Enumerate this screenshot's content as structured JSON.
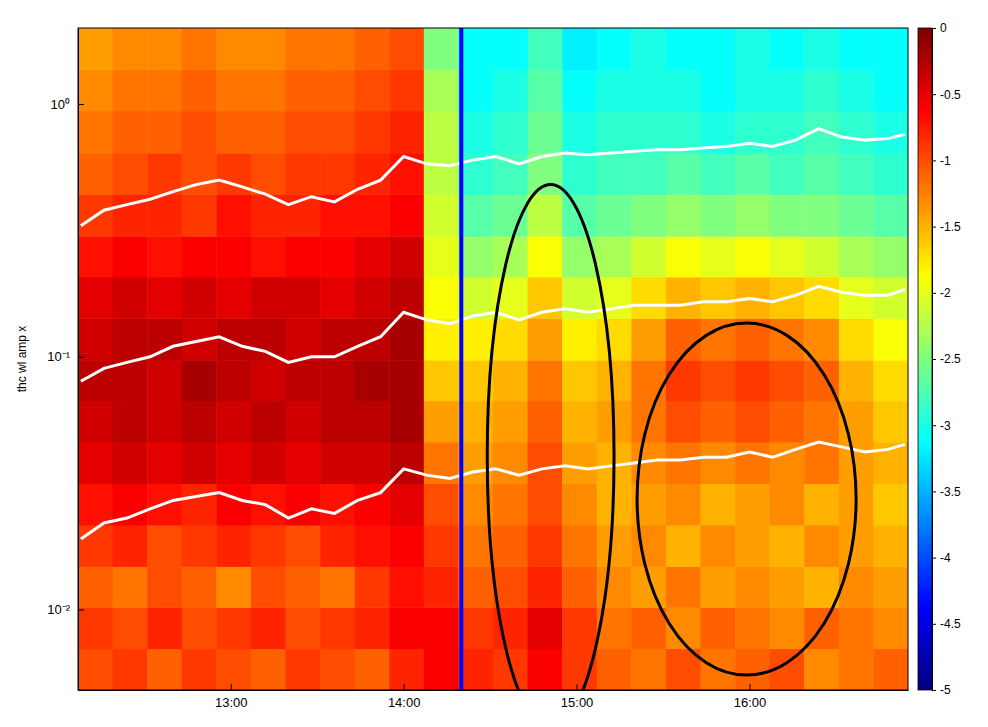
{
  "chart_data": {
    "type": "heatmap",
    "y_label": "thc wl amp x",
    "log": "y",
    "grid": false,
    "xlim": [
      727,
      1015
    ],
    "xticks": [
      {
        "value": 780,
        "label": "13:00"
      },
      {
        "value": 840,
        "label": "14:00"
      },
      {
        "value": 900,
        "label": "15:00"
      },
      {
        "value": 960,
        "label": "16:00"
      }
    ],
    "ylim": [
      0.0048,
      2.0
    ],
    "yticks": [
      {
        "value": 0.01,
        "label": "10⁻²"
      },
      {
        "value": 0.1,
        "label": "10⁻¹"
      },
      {
        "value": 1,
        "label": "10⁰"
      }
    ],
    "x_edges": [
      727,
      739,
      751,
      763,
      775,
      787,
      799,
      811,
      823,
      835,
      847,
      859,
      871,
      883,
      895,
      907,
      919,
      931,
      943,
      955,
      967,
      979,
      991,
      1003,
      1015
    ],
    "y_edges": [
      0.0048,
      0.007,
      0.0102,
      0.0148,
      0.0216,
      0.0315,
      0.046,
      0.067,
      0.097,
      0.142,
      0.207,
      0.3,
      0.44,
      0.64,
      0.94,
      1.37,
      2.0
    ],
    "z": [
      [
        -1.0,
        -0.9,
        -1.1,
        -0.9,
        -1.0,
        -1.1,
        -0.9,
        -1.0,
        -1.1,
        -0.8,
        -0.6,
        -0.8,
        -0.9,
        -0.6,
        -0.9,
        -1.1,
        -1.2,
        -1.0,
        -1.2,
        -1.1,
        -1.0,
        -1.3,
        -1.2,
        -1.1
      ],
      [
        -0.9,
        -1.0,
        -0.8,
        -1.0,
        -0.9,
        -0.8,
        -1.0,
        -0.9,
        -0.8,
        -0.6,
        -0.6,
        -0.9,
        -0.8,
        -0.5,
        -0.9,
        -1.2,
        -1.1,
        -1.3,
        -1.1,
        -1.2,
        -1.3,
        -1.1,
        -1.2,
        -1.3
      ],
      [
        -1.1,
        -1.2,
        -1.0,
        -1.1,
        -1.3,
        -1.0,
        -1.1,
        -1.2,
        -0.9,
        -0.7,
        -0.8,
        -1.1,
        -1.0,
        -0.8,
        -1.1,
        -1.3,
        -1.4,
        -1.2,
        -1.4,
        -1.3,
        -1.4,
        -1.5,
        -1.3,
        -1.4
      ],
      [
        -0.9,
        -0.8,
        -1.0,
        -0.9,
        -0.8,
        -0.9,
        -1.0,
        -0.8,
        -0.7,
        -0.6,
        -0.9,
        -1.2,
        -1.1,
        -0.9,
        -1.2,
        -1.4,
        -1.3,
        -1.5,
        -1.3,
        -1.4,
        -1.5,
        -1.3,
        -1.4,
        -1.5
      ],
      [
        -0.7,
        -0.6,
        -0.7,
        -0.8,
        -0.6,
        -0.7,
        -0.6,
        -0.7,
        -0.6,
        -0.5,
        -1.0,
        -1.3,
        -1.2,
        -1.0,
        -1.3,
        -1.5,
        -1.4,
        -1.3,
        -1.5,
        -1.4,
        -1.3,
        -1.5,
        -1.4,
        -1.6
      ],
      [
        -0.5,
        -0.4,
        -0.5,
        -0.4,
        -0.5,
        -0.4,
        -0.5,
        -0.4,
        -0.4,
        -0.3,
        -1.2,
        -1.4,
        -1.3,
        -1.0,
        -1.4,
        -1.5,
        -1.3,
        -1.2,
        -1.3,
        -1.2,
        -1.3,
        -1.2,
        -1.4,
        -1.5
      ],
      [
        -0.4,
        -0.3,
        -0.4,
        -0.3,
        -0.4,
        -0.3,
        -0.4,
        -0.3,
        -0.3,
        -0.2,
        -1.4,
        -1.5,
        -1.4,
        -1.1,
        -1.5,
        -1.4,
        -1.2,
        -1.0,
        -1.1,
        -1.0,
        -1.1,
        -1.2,
        -1.4,
        -1.6
      ],
      [
        -0.3,
        -0.3,
        -0.4,
        -0.2,
        -0.3,
        -0.4,
        -0.3,
        -0.3,
        -0.2,
        -0.2,
        -1.6,
        -1.6,
        -1.5,
        -1.2,
        -1.6,
        -1.5,
        -1.2,
        -0.9,
        -1.0,
        -0.9,
        -1.0,
        -1.1,
        -1.5,
        -1.7
      ],
      [
        -0.4,
        -0.3,
        -0.3,
        -0.4,
        -0.3,
        -0.3,
        -0.4,
        -0.3,
        -0.3,
        -0.2,
        -1.8,
        -1.8,
        -1.7,
        -1.4,
        -1.8,
        -1.7,
        -1.4,
        -1.1,
        -1.2,
        -1.1,
        -1.2,
        -1.3,
        -1.7,
        -1.9
      ],
      [
        -0.5,
        -0.4,
        -0.5,
        -0.4,
        -0.5,
        -0.4,
        -0.4,
        -0.5,
        -0.4,
        -0.3,
        -1.9,
        -2.1,
        -2.0,
        -1.6,
        -2.1,
        -2.0,
        -1.7,
        -1.5,
        -1.6,
        -1.5,
        -1.6,
        -1.7,
        -2.0,
        -2.1
      ],
      [
        -0.7,
        -0.6,
        -0.7,
        -0.6,
        -0.6,
        -0.7,
        -0.6,
        -0.6,
        -0.5,
        -0.4,
        -2.0,
        -2.4,
        -2.3,
        -1.9,
        -2.4,
        -2.3,
        -2.1,
        -1.9,
        -2.0,
        -1.9,
        -2.0,
        -2.1,
        -2.3,
        -2.4
      ],
      [
        -0.9,
        -0.8,
        -0.8,
        -0.9,
        -0.7,
        -0.8,
        -0.8,
        -0.7,
        -0.7,
        -0.6,
        -2.1,
        -2.7,
        -2.6,
        -2.2,
        -2.7,
        -2.6,
        -2.5,
        -2.4,
        -2.5,
        -2.4,
        -2.5,
        -2.5,
        -2.6,
        -2.7
      ],
      [
        -1.1,
        -1.0,
        -0.9,
        -1.0,
        -0.9,
        -1.0,
        -0.9,
        -0.9,
        -0.8,
        -0.7,
        -2.2,
        -2.9,
        -2.8,
        -2.5,
        -2.9,
        -2.8,
        -2.8,
        -2.7,
        -2.8,
        -2.7,
        -2.8,
        -2.7,
        -2.8,
        -2.9
      ],
      [
        -1.2,
        -1.1,
        -1.1,
        -1.0,
        -1.1,
        -1.1,
        -1.0,
        -1.0,
        -0.9,
        -0.8,
        -2.2,
        -3.0,
        -2.9,
        -2.6,
        -3.0,
        -2.9,
        -2.9,
        -2.9,
        -3.0,
        -2.9,
        -2.9,
        -2.8,
        -2.9,
        -3.0
      ],
      [
        -1.3,
        -1.2,
        -1.2,
        -1.1,
        -1.2,
        -1.2,
        -1.1,
        -1.1,
        -1.0,
        -0.9,
        -2.3,
        -3.1,
        -3.0,
        -2.7,
        -3.1,
        -3.0,
        -3.0,
        -3.0,
        -3.1,
        -3.0,
        -3.0,
        -2.9,
        -3.0,
        -3.1
      ],
      [
        -1.4,
        -1.3,
        -1.3,
        -1.2,
        -1.3,
        -1.3,
        -1.2,
        -1.2,
        -1.1,
        -1.0,
        -2.5,
        -3.1,
        -3.1,
        -2.8,
        -3.2,
        -3.1,
        -3.0,
        -3.1,
        -3.1,
        -3.0,
        -3.1,
        -3.0,
        -3.1,
        -3.1
      ]
    ],
    "colorbar": {
      "range": [
        -5,
        0
      ],
      "ticks": [
        0,
        -0.5,
        -1,
        -1.5,
        -2,
        -2.5,
        -3,
        -3.5,
        -4,
        -4.5,
        -5
      ]
    },
    "x": [
      728,
      736,
      744,
      752,
      760,
      768,
      776,
      784,
      792,
      800,
      808,
      816,
      824,
      832,
      840,
      848,
      856,
      864,
      872,
      880,
      888,
      896,
      904,
      912,
      920,
      928,
      936,
      944,
      952,
      960,
      968,
      976,
      984,
      992,
      1000,
      1008,
      1014
    ],
    "series": [
      {
        "color": "#ffffff",
        "values": [
          0.33,
          0.38,
          0.4,
          0.42,
          0.45,
          0.48,
          0.5,
          0.47,
          0.44,
          0.4,
          0.43,
          0.41,
          0.46,
          0.5,
          0.62,
          0.58,
          0.57,
          0.6,
          0.62,
          0.58,
          0.62,
          0.64,
          0.63,
          0.64,
          0.65,
          0.66,
          0.66,
          0.67,
          0.68,
          0.7,
          0.68,
          0.72,
          0.8,
          0.74,
          0.72,
          0.73,
          0.76
        ]
      },
      {
        "color": "#ffffff",
        "values": [
          0.08,
          0.09,
          0.095,
          0.1,
          0.11,
          0.115,
          0.12,
          0.11,
          0.105,
          0.095,
          0.1,
          0.1,
          0.11,
          0.12,
          0.15,
          0.14,
          0.135,
          0.145,
          0.15,
          0.14,
          0.15,
          0.155,
          0.15,
          0.155,
          0.16,
          0.16,
          0.16,
          0.165,
          0.165,
          0.17,
          0.165,
          0.175,
          0.19,
          0.18,
          0.175,
          0.175,
          0.185
        ]
      },
      {
        "color": "#ffffff",
        "values": [
          0.019,
          0.022,
          0.023,
          0.025,
          0.027,
          0.028,
          0.029,
          0.027,
          0.026,
          0.023,
          0.025,
          0.024,
          0.027,
          0.029,
          0.036,
          0.034,
          0.033,
          0.035,
          0.036,
          0.034,
          0.036,
          0.037,
          0.036,
          0.037,
          0.038,
          0.039,
          0.039,
          0.04,
          0.04,
          0.042,
          0.04,
          0.043,
          0.046,
          0.044,
          0.042,
          0.043,
          0.045
        ]
      }
    ],
    "vline": {
      "value": 860,
      "color": "#0000ff"
    },
    "ellipses": [
      {
        "cx": 891,
        "rx": 22,
        "y": [
          0.0034,
          0.48
        ],
        "color": "#000000"
      },
      {
        "cx": 959,
        "rx": 38,
        "y": [
          0.0055,
          0.136
        ],
        "color": "#000000"
      }
    ]
  }
}
